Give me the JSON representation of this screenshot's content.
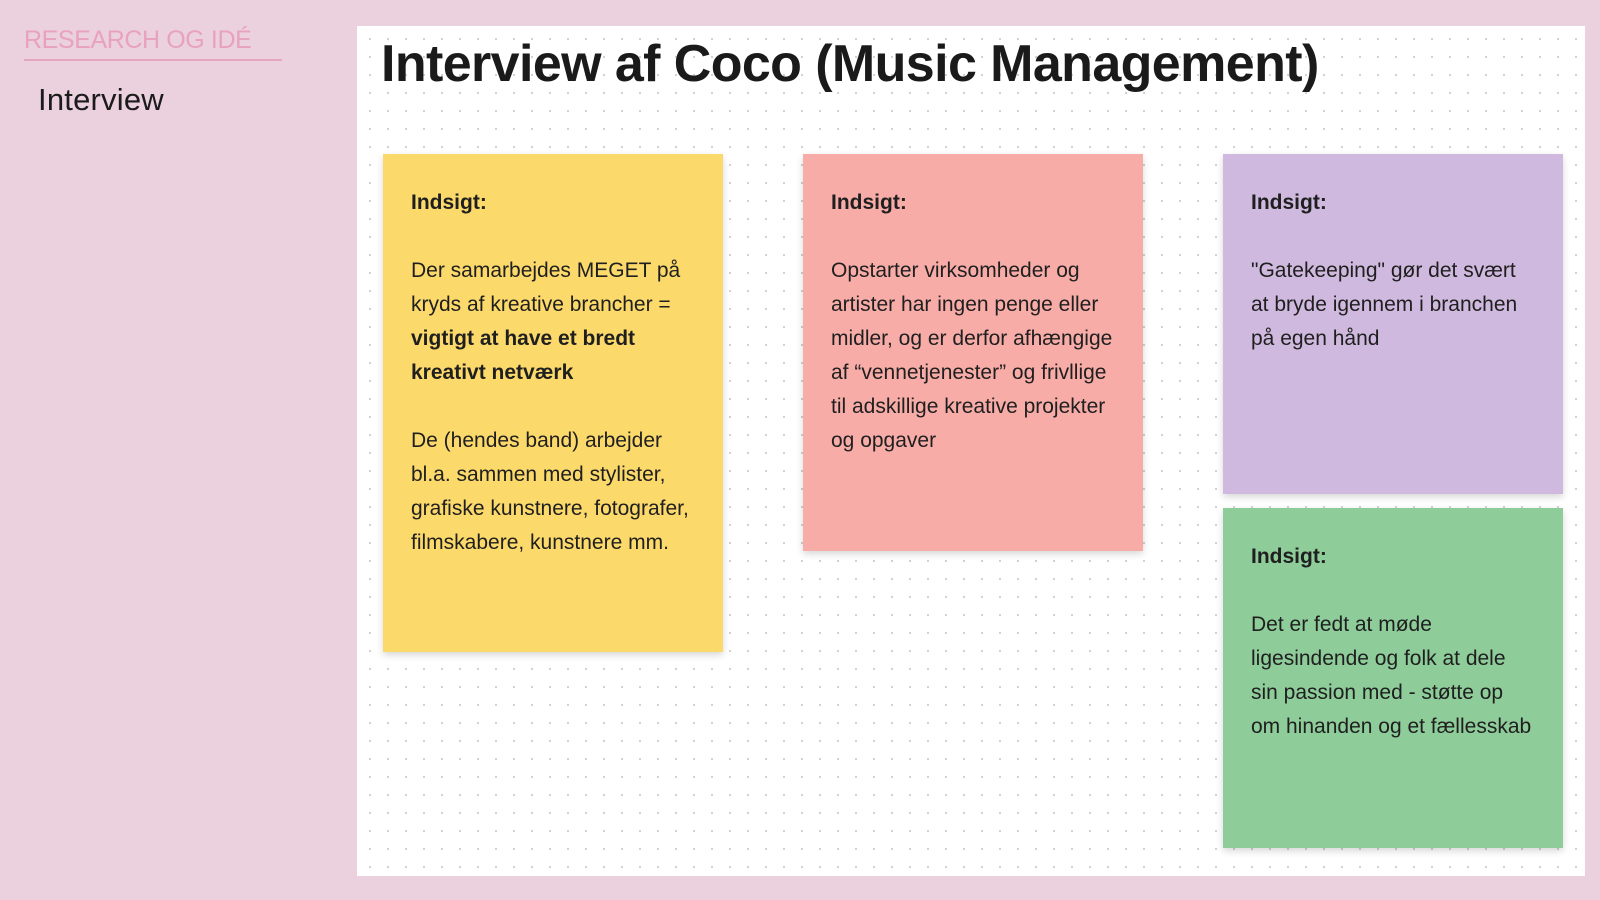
{
  "sidebar": {
    "section_title": "RESEARCH OG IDÉ",
    "items": [
      {
        "label": "Interview"
      }
    ]
  },
  "board": {
    "title": "Interview af Coco (Music Management)",
    "notes": [
      {
        "color": "#fcd96b",
        "label": "Indsigt:",
        "text_1": "Der samarbejdes MEGET på kryds af kreative brancher = ",
        "text_1_bold": "vigtigt at have et  bredt kreativt netværk",
        "text_2": "De (hendes band) arbejder bl.a. sammen med stylister, grafiske kunstnere, fotografer, filmskabere, kunstnere mm."
      },
      {
        "color": "#f8aca7",
        "label": "Indsigt:",
        "text_1": "Opstarter virksomheder og artister har ingen penge eller midler,  og  er derfor afhængige af “vennetjenester” og frivllige til adskillige kreative projekter og opgaver"
      },
      {
        "color": "#d0b9de",
        "label": "Indsigt:",
        "text_1": "\"Gatekeeping\" gør det svært at bryde igennem i branchen på egen hånd"
      },
      {
        "color": "#8ecc9a",
        "label": "Indsigt:",
        "text_1": "Det er fedt at møde ligesindende og folk at dele sin passion med - støtte op om hinanden og et fællesskab"
      }
    ]
  }
}
